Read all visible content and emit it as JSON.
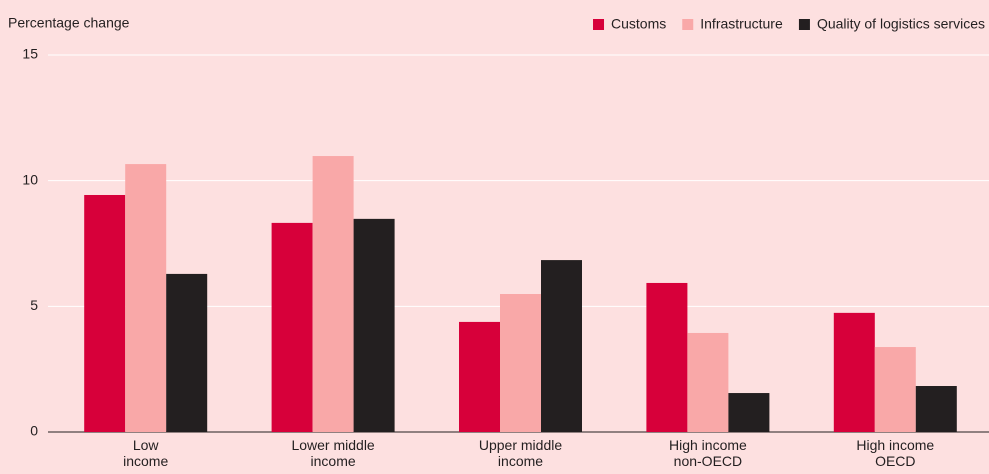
{
  "chart_data": {
    "type": "bar",
    "y_axis_label": "Percentage change",
    "categories": [
      "Low\nincome",
      "Lower middle\nincome",
      "Upper middle\nincome",
      "High income\nnon-OECD",
      "High income\nOECD"
    ],
    "series": [
      {
        "name": "Customs",
        "color": "#d7003a",
        "values": [
          9.43,
          8.32,
          4.38,
          5.93,
          4.74
        ]
      },
      {
        "name": "Infrastructure",
        "color": "#f9a8a8",
        "values": [
          10.66,
          10.98,
          5.49,
          3.94,
          3.38
        ]
      },
      {
        "name": "Quality of logistics services",
        "color": "#231f20",
        "values": [
          6.29,
          8.48,
          6.84,
          1.55,
          1.83
        ]
      }
    ],
    "ylim": [
      0,
      15
    ],
    "yticks": [
      0,
      5,
      10,
      15
    ],
    "grid": true,
    "legend": "top-right"
  }
}
